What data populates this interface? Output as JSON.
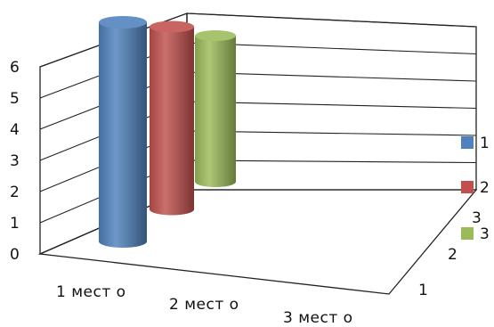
{
  "chart_data": {
    "type": "bar",
    "categories": [
      "1 мест о",
      "2 мест о",
      "3 мест о"
    ],
    "y_ticks": [
      "0",
      "1",
      "2",
      "3",
      "4",
      "5",
      "6"
    ],
    "ylim": [
      0,
      6
    ],
    "depth_ticks": [
      "1",
      "2",
      "3"
    ],
    "series": [
      {
        "name": "1",
        "values": [
          6,
          null,
          null
        ],
        "color": "#4F81BD"
      },
      {
        "name": "2",
        "values": [
          5,
          null,
          null
        ],
        "color": "#C0504D"
      },
      {
        "name": "3",
        "values": [
          4,
          null,
          null
        ],
        "color": "#9BBB59"
      }
    ],
    "grid": true,
    "legend_position": "right"
  }
}
